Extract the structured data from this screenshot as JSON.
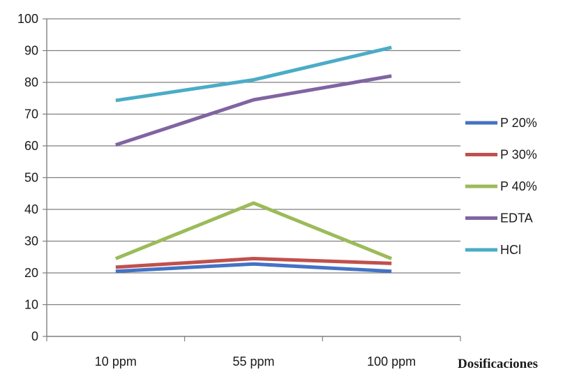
{
  "chart_data": {
    "type": "line",
    "title": "",
    "xlabel": "Dosificaciones",
    "ylabel": "",
    "categories": [
      "10 ppm",
      "55 ppm",
      "100 ppm"
    ],
    "ylim": [
      0,
      100
    ],
    "yticks": [
      0,
      10,
      20,
      30,
      40,
      50,
      60,
      70,
      80,
      90,
      100
    ],
    "grid": true,
    "legend_position": "right",
    "series": [
      {
        "name": "P 20%",
        "color": "#4472c4",
        "values": [
          20.5,
          22.8,
          20.5
        ]
      },
      {
        "name": "P 30%",
        "color": "#c0504d",
        "values": [
          21.8,
          24.5,
          23.0
        ]
      },
      {
        "name": "P 40%",
        "color": "#9bbb59",
        "values": [
          24.5,
          42.0,
          24.5
        ]
      },
      {
        "name": "EDTA",
        "color": "#8064a2",
        "values": [
          60.3,
          74.5,
          82.0
        ]
      },
      {
        "name": "HCl",
        "color": "#4bacc6",
        "values": [
          74.3,
          80.8,
          91.0
        ]
      }
    ]
  }
}
